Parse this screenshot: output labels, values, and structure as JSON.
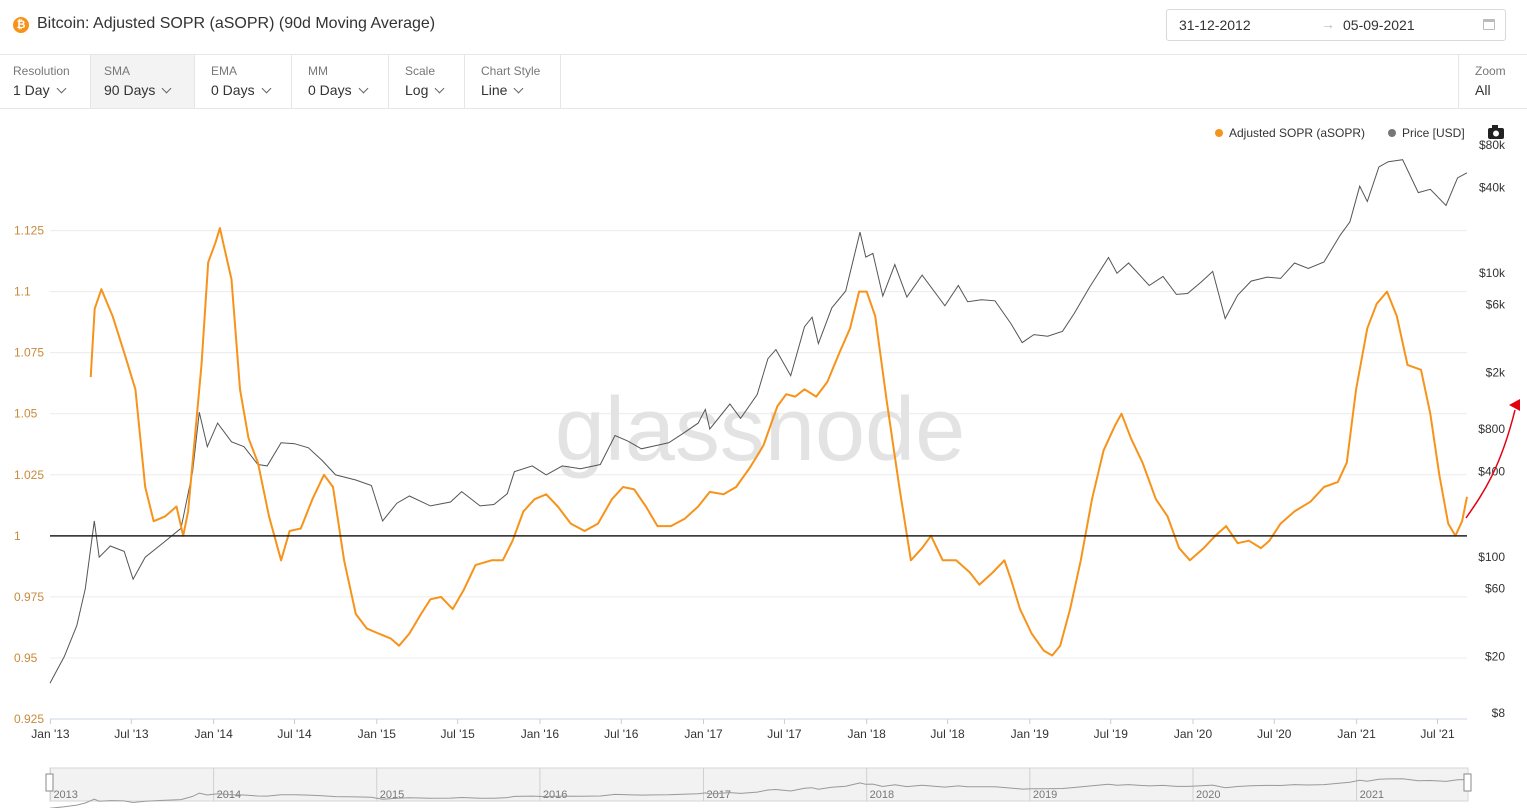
{
  "header": {
    "icon": "bitcoin-icon",
    "title": "Bitcoin: Adjusted SOPR (aSOPR) (90d Moving Average)",
    "date_from": "31-12-2012",
    "date_arrow": "→",
    "date_to": "05-09-2021"
  },
  "toolbar": {
    "items": [
      {
        "label": "Resolution",
        "value": "1 Day"
      },
      {
        "label": "SMA",
        "value": "90 Days"
      },
      {
        "label": "EMA",
        "value": "0 Days"
      },
      {
        "label": "MM",
        "value": "0 Days"
      },
      {
        "label": "Scale",
        "value": "Log"
      },
      {
        "label": "Chart Style",
        "value": "Line"
      }
    ],
    "zoom": {
      "label": "Zoom",
      "value": "All"
    }
  },
  "colors": {
    "sopr": "#f7931a",
    "price": "#555555",
    "baseline": "#222222",
    "annotation": "#e3000f"
  },
  "watermark": "glassnode",
  "chart_data": {
    "type": "line",
    "legend": [
      "Adjusted SOPR (aSOPR)",
      "Price [USD]"
    ],
    "legend_position": "top-right",
    "y_left": {
      "ticks": [
        0.925,
        0.95,
        0.975,
        1,
        1.025,
        1.05,
        1.075,
        1.1,
        1.125
      ],
      "tick_labels": [
        "0.925",
        "0.95",
        "0.975",
        "1",
        "1.025",
        "1.05",
        "1.075",
        "1.1",
        "1.125"
      ],
      "range": [
        0.925,
        1.1625
      ]
    },
    "y_right": {
      "scale": "log",
      "ticks": [
        8,
        20,
        60,
        100,
        400,
        800,
        2000,
        6000,
        10000,
        40000,
        80000
      ],
      "tick_labels": [
        "$8",
        "$20",
        "$60",
        "$100",
        "$400",
        "$800",
        "$2k",
        "$6k",
        "$10k",
        "$40k",
        "$80k"
      ]
    },
    "x_axis": {
      "tick_labels": [
        "Jan '13",
        "Jul '13",
        "Jan '14",
        "Jul '14",
        "Jan '15",
        "Jul '15",
        "Jan '16",
        "Jul '16",
        "Jan '17",
        "Jul '17",
        "Jan '18",
        "Jul '18",
        "Jan '19",
        "Jul '19",
        "Jan '20",
        "Jul '20",
        "Jan '21",
        "Jul '21"
      ],
      "range": [
        "2012-12-31",
        "2021-09-05"
      ]
    },
    "baseline": 1,
    "series": [
      {
        "name": "Adjusted SOPR (aSOPR)",
        "axis": "left",
        "points": [
          [
            "2013-04-01",
            1.065
          ],
          [
            "2013-04-10",
            1.093
          ],
          [
            "2013-04-25",
            1.101
          ],
          [
            "2013-05-20",
            1.09
          ],
          [
            "2013-06-15",
            1.075
          ],
          [
            "2013-07-10",
            1.06
          ],
          [
            "2013-08-01",
            1.02
          ],
          [
            "2013-08-20",
            1.006
          ],
          [
            "2013-09-15",
            1.008
          ],
          [
            "2013-10-10",
            1.012
          ],
          [
            "2013-10-25",
            1.0
          ],
          [
            "2013-11-05",
            1.01
          ],
          [
            "2013-11-20",
            1.04
          ],
          [
            "2013-12-05",
            1.07
          ],
          [
            "2013-12-20",
            1.112
          ],
          [
            "2014-01-05",
            1.12
          ],
          [
            "2014-01-15",
            1.126
          ],
          [
            "2014-01-25",
            1.118
          ],
          [
            "2014-02-10",
            1.105
          ],
          [
            "2014-03-01",
            1.06
          ],
          [
            "2014-03-20",
            1.04
          ],
          [
            "2014-04-10",
            1.03
          ],
          [
            "2014-05-05",
            1.008
          ],
          [
            "2014-06-01",
            0.99
          ],
          [
            "2014-06-20",
            1.002
          ],
          [
            "2014-07-15",
            1.003
          ],
          [
            "2014-08-10",
            1.015
          ],
          [
            "2014-09-05",
            1.025
          ],
          [
            "2014-09-25",
            1.02
          ],
          [
            "2014-10-20",
            0.99
          ],
          [
            "2014-11-15",
            0.968
          ],
          [
            "2014-12-10",
            0.962
          ],
          [
            "2015-01-05",
            0.96
          ],
          [
            "2015-02-01",
            0.958
          ],
          [
            "2015-02-20",
            0.955
          ],
          [
            "2015-03-15",
            0.96
          ],
          [
            "2015-04-10",
            0.968
          ],
          [
            "2015-05-01",
            0.974
          ],
          [
            "2015-05-25",
            0.975
          ],
          [
            "2015-06-20",
            0.97
          ],
          [
            "2015-07-15",
            0.978
          ],
          [
            "2015-08-10",
            0.988
          ],
          [
            "2015-09-15",
            0.99
          ],
          [
            "2015-10-10",
            0.99
          ],
          [
            "2015-11-01",
            0.998
          ],
          [
            "2015-11-25",
            1.01
          ],
          [
            "2015-12-20",
            1.015
          ],
          [
            "2016-01-15",
            1.017
          ],
          [
            "2016-02-10",
            1.012
          ],
          [
            "2016-03-10",
            1.005
          ],
          [
            "2016-04-10",
            1.002
          ],
          [
            "2016-05-10",
            1.005
          ],
          [
            "2016-06-10",
            1.015
          ],
          [
            "2016-07-05",
            1.02
          ],
          [
            "2016-07-30",
            1.019
          ],
          [
            "2016-08-25",
            1.012
          ],
          [
            "2016-09-20",
            1.004
          ],
          [
            "2016-10-20",
            1.004
          ],
          [
            "2016-11-20",
            1.007
          ],
          [
            "2016-12-20",
            1.012
          ],
          [
            "2017-01-15",
            1.018
          ],
          [
            "2017-02-15",
            1.017
          ],
          [
            "2017-03-15",
            1.02
          ],
          [
            "2017-04-15",
            1.028
          ],
          [
            "2017-05-15",
            1.037
          ],
          [
            "2017-06-15",
            1.053
          ],
          [
            "2017-07-05",
            1.058
          ],
          [
            "2017-07-25",
            1.057
          ],
          [
            "2017-08-15",
            1.06
          ],
          [
            "2017-09-10",
            1.057
          ],
          [
            "2017-10-05",
            1.063
          ],
          [
            "2017-11-01",
            1.075
          ],
          [
            "2017-11-25",
            1.085
          ],
          [
            "2017-12-15",
            1.1
          ],
          [
            "2018-01-01",
            1.1
          ],
          [
            "2018-01-20",
            1.09
          ],
          [
            "2018-02-15",
            1.055
          ],
          [
            "2018-03-15",
            1.02
          ],
          [
            "2018-04-10",
            0.99
          ],
          [
            "2018-05-05",
            0.995
          ],
          [
            "2018-05-25",
            1.0
          ],
          [
            "2018-06-20",
            0.99
          ],
          [
            "2018-07-20",
            0.99
          ],
          [
            "2018-08-20",
            0.985
          ],
          [
            "2018-09-10",
            0.98
          ],
          [
            "2018-10-10",
            0.985
          ],
          [
            "2018-11-05",
            0.99
          ],
          [
            "2018-11-20",
            0.982
          ],
          [
            "2018-12-10",
            0.97
          ],
          [
            "2019-01-05",
            0.96
          ],
          [
            "2019-02-01",
            0.953
          ],
          [
            "2019-02-20",
            0.951
          ],
          [
            "2019-03-10",
            0.955
          ],
          [
            "2019-04-01",
            0.97
          ],
          [
            "2019-04-25",
            0.99
          ],
          [
            "2019-05-20",
            1.015
          ],
          [
            "2019-06-15",
            1.035
          ],
          [
            "2019-07-10",
            1.045
          ],
          [
            "2019-07-25",
            1.05
          ],
          [
            "2019-08-15",
            1.04
          ],
          [
            "2019-09-10",
            1.03
          ],
          [
            "2019-10-10",
            1.015
          ],
          [
            "2019-11-05",
            1.008
          ],
          [
            "2019-12-01",
            0.995
          ],
          [
            "2019-12-25",
            0.99
          ],
          [
            "2020-01-25",
            0.995
          ],
          [
            "2020-02-20",
            1.0
          ],
          [
            "2020-03-15",
            1.004
          ],
          [
            "2020-04-10",
            0.997
          ],
          [
            "2020-05-05",
            0.998
          ],
          [
            "2020-06-01",
            0.995
          ],
          [
            "2020-06-20",
            0.998
          ],
          [
            "2020-07-15",
            1.005
          ],
          [
            "2020-08-15",
            1.01
          ],
          [
            "2020-09-20",
            1.014
          ],
          [
            "2020-10-20",
            1.02
          ],
          [
            "2020-11-20",
            1.022
          ],
          [
            "2020-12-10",
            1.03
          ],
          [
            "2020-12-31",
            1.06
          ],
          [
            "2021-01-25",
            1.085
          ],
          [
            "2021-02-15",
            1.095
          ],
          [
            "2021-03-10",
            1.1
          ],
          [
            "2021-04-01",
            1.09
          ],
          [
            "2021-04-25",
            1.07
          ],
          [
            "2021-05-25",
            1.068
          ],
          [
            "2021-06-15",
            1.05
          ],
          [
            "2021-07-05",
            1.025
          ],
          [
            "2021-07-25",
            1.005
          ],
          [
            "2021-08-10",
            1.0
          ],
          [
            "2021-08-25",
            1.006
          ],
          [
            "2021-09-05",
            1.016
          ]
        ]
      },
      {
        "name": "Price [USD]",
        "axis": "right",
        "points": [
          [
            "2012-12-31",
            13
          ],
          [
            "2013-02-01",
            20
          ],
          [
            "2013-03-01",
            33
          ],
          [
            "2013-03-20",
            60
          ],
          [
            "2013-04-09",
            180
          ],
          [
            "2013-04-20",
            100
          ],
          [
            "2013-05-15",
            120
          ],
          [
            "2013-06-15",
            110
          ],
          [
            "2013-07-05",
            70
          ],
          [
            "2013-08-01",
            100
          ],
          [
            "2013-09-15",
            130
          ],
          [
            "2013-10-20",
            160
          ],
          [
            "2013-11-15",
            400
          ],
          [
            "2013-11-30",
            1050
          ],
          [
            "2013-12-18",
            600
          ],
          [
            "2014-01-10",
            880
          ],
          [
            "2014-02-10",
            650
          ],
          [
            "2014-03-10",
            600
          ],
          [
            "2014-04-10",
            450
          ],
          [
            "2014-05-01",
            440
          ],
          [
            "2014-06-01",
            640
          ],
          [
            "2014-07-01",
            630
          ],
          [
            "2014-08-01",
            590
          ],
          [
            "2014-09-01",
            480
          ],
          [
            "2014-10-01",
            380
          ],
          [
            "2014-11-15",
            350
          ],
          [
            "2014-12-20",
            320
          ],
          [
            "2015-01-14",
            180
          ],
          [
            "2015-02-15",
            240
          ],
          [
            "2015-03-15",
            270
          ],
          [
            "2015-05-01",
            230
          ],
          [
            "2015-06-15",
            245
          ],
          [
            "2015-07-10",
            290
          ],
          [
            "2015-08-20",
            230
          ],
          [
            "2015-09-20",
            235
          ],
          [
            "2015-10-20",
            280
          ],
          [
            "2015-11-05",
            400
          ],
          [
            "2015-12-15",
            440
          ],
          [
            "2016-01-15",
            380
          ],
          [
            "2016-02-20",
            440
          ],
          [
            "2016-04-01",
            420
          ],
          [
            "2016-05-15",
            450
          ],
          [
            "2016-06-17",
            720
          ],
          [
            "2016-07-15",
            660
          ],
          [
            "2016-08-15",
            580
          ],
          [
            "2016-09-15",
            610
          ],
          [
            "2016-10-15",
            640
          ],
          [
            "2016-11-15",
            740
          ],
          [
            "2016-12-20",
            880
          ],
          [
            "2017-01-05",
            1100
          ],
          [
            "2017-01-15",
            800
          ],
          [
            "2017-03-01",
            1200
          ],
          [
            "2017-03-25",
            950
          ],
          [
            "2017-05-01",
            1400
          ],
          [
            "2017-05-25",
            2500
          ],
          [
            "2017-06-12",
            2900
          ],
          [
            "2017-07-15",
            1900
          ],
          [
            "2017-08-15",
            4200
          ],
          [
            "2017-09-01",
            4900
          ],
          [
            "2017-09-15",
            3200
          ],
          [
            "2017-10-15",
            5700
          ],
          [
            "2017-11-15",
            7500
          ],
          [
            "2017-12-17",
            19500
          ],
          [
            "2017-12-30",
            13000
          ],
          [
            "2018-01-15",
            13800
          ],
          [
            "2018-02-06",
            6900
          ],
          [
            "2018-03-05",
            11500
          ],
          [
            "2018-04-01",
            6800
          ],
          [
            "2018-05-05",
            9700
          ],
          [
            "2018-06-25",
            5900
          ],
          [
            "2018-07-25",
            8200
          ],
          [
            "2018-08-15",
            6300
          ],
          [
            "2018-09-15",
            6500
          ],
          [
            "2018-10-15",
            6400
          ],
          [
            "2018-11-20",
            4400
          ],
          [
            "2018-12-15",
            3250
          ],
          [
            "2019-01-10",
            3700
          ],
          [
            "2019-02-10",
            3600
          ],
          [
            "2019-03-15",
            3900
          ],
          [
            "2019-04-10",
            5200
          ],
          [
            "2019-05-15",
            8000
          ],
          [
            "2019-06-26",
            12900
          ],
          [
            "2019-07-15",
            10000
          ],
          [
            "2019-08-10",
            11800
          ],
          [
            "2019-09-25",
            8200
          ],
          [
            "2019-10-26",
            9500
          ],
          [
            "2019-11-25",
            7100
          ],
          [
            "2019-12-20",
            7200
          ],
          [
            "2020-01-20",
            8700
          ],
          [
            "2020-02-14",
            10300
          ],
          [
            "2020-03-13",
            4800
          ],
          [
            "2020-04-10",
            7000
          ],
          [
            "2020-05-10",
            8800
          ],
          [
            "2020-06-15",
            9400
          ],
          [
            "2020-07-15",
            9200
          ],
          [
            "2020-08-15",
            11800
          ],
          [
            "2020-09-15",
            10800
          ],
          [
            "2020-10-20",
            12000
          ],
          [
            "2020-11-25",
            18500
          ],
          [
            "2020-12-17",
            23000
          ],
          [
            "2021-01-08",
            41000
          ],
          [
            "2021-01-25",
            32000
          ],
          [
            "2021-02-20",
            56000
          ],
          [
            "2021-03-13",
            61000
          ],
          [
            "2021-04-14",
            63000
          ],
          [
            "2021-05-19",
            37000
          ],
          [
            "2021-06-15",
            39000
          ],
          [
            "2021-07-20",
            30000
          ],
          [
            "2021-08-15",
            47000
          ],
          [
            "2021-09-05",
            51000
          ]
        ]
      }
    ]
  }
}
